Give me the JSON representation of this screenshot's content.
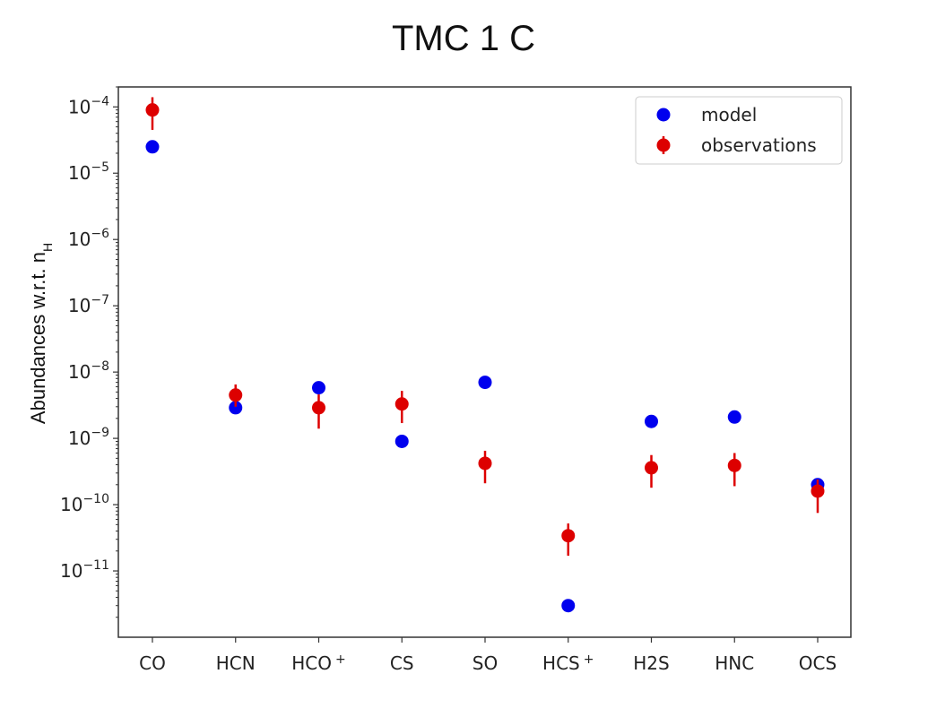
{
  "chart_data": {
    "type": "scatter",
    "title": "TMC 1 C",
    "xlabel": "",
    "ylabel": "Abundances w.r.t. n",
    "ylabel_subscript": "H",
    "categories": [
      "CO",
      "HCN",
      "HCO",
      "CS",
      "SO",
      "HCS",
      "H2S",
      "HNC",
      "OCS"
    ],
    "category_superscripts": [
      "",
      "",
      "+",
      "",
      "",
      "+",
      "",
      "",
      ""
    ],
    "yscale": "log",
    "ylim": [
      1e-12,
      0.0002
    ],
    "yticks": [
      {
        "value": 1e-11,
        "base": "10",
        "exp": "−11"
      },
      {
        "value": 1e-10,
        "base": "10",
        "exp": "−10"
      },
      {
        "value": 1e-09,
        "base": "10",
        "exp": "−9"
      },
      {
        "value": 1e-08,
        "base": "10",
        "exp": "−8"
      },
      {
        "value": 1e-07,
        "base": "10",
        "exp": "−7"
      },
      {
        "value": 1e-06,
        "base": "10",
        "exp": "−6"
      },
      {
        "value": 1e-05,
        "base": "10",
        "exp": "−5"
      },
      {
        "value": 0.0001,
        "base": "10",
        "exp": "−4"
      }
    ],
    "legend_position": "top-right",
    "series": [
      {
        "name": "model",
        "color": "#0000ee",
        "marker": "circle",
        "values": [
          2.5e-05,
          2.9e-09,
          5.8e-09,
          9e-10,
          7e-09,
          3e-12,
          1.8e-09,
          2.1e-09,
          2e-10
        ]
      },
      {
        "name": "observations",
        "color": "#dd0000",
        "marker": "circle",
        "values": [
          9e-05,
          4.5e-09,
          2.9e-09,
          3.3e-09,
          4.2e-10,
          3.4e-11,
          3.6e-10,
          3.9e-10,
          1.6e-10
        ],
        "error_low": [
          4.5e-05,
          3e-09,
          1.4e-09,
          1.7e-09,
          2.1e-10,
          1.7e-11,
          1.8e-10,
          1.9e-10,
          7.5e-11
        ],
        "error_high": [
          0.00014,
          6.5e-09,
          4.6e-09,
          5.2e-09,
          6.5e-10,
          5.2e-11,
          5.6e-10,
          6e-10,
          2.4e-10
        ]
      }
    ]
  }
}
